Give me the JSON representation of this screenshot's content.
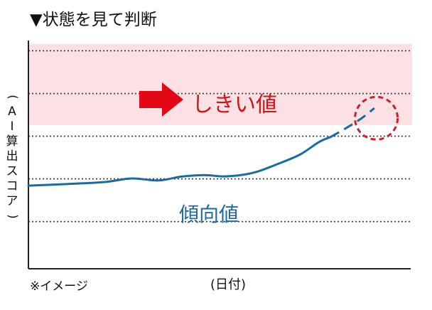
{
  "title": "▼状態を見て判断",
  "note": "※イメージ",
  "chart_data": {
    "type": "line",
    "xlabel": "(日付)",
    "ylabel": "(AI算出スコア)",
    "xlim": [
      0,
      100
    ],
    "ylim": [
      0,
      100
    ],
    "grid": true,
    "gridlines_y": [
      21,
      40,
      59,
      78,
      97
    ],
    "threshold_band": {
      "from": 64,
      "to": 100,
      "color": "#fbe1e3"
    },
    "annotations": {
      "threshold": "しきい値",
      "trend": "傾向値"
    },
    "colors": {
      "series": "#1b6aa0",
      "threshold_text": "#d3121a",
      "highlight_circle": "#c8222e",
      "arrow": "#e30613"
    },
    "series": [
      {
        "x": [
          0,
          10,
          20,
          27,
          34,
          40,
          46,
          51,
          56,
          60,
          65,
          71,
          76,
          79
        ],
        "y": [
          37,
          37.7,
          38.6,
          40.2,
          39.3,
          41,
          41.7,
          41.1,
          41.8,
          43.3,
          46.5,
          50.8,
          56.4,
          58.6
        ]
      },
      {
        "style": "dashed",
        "x": [
          79,
          83,
          87,
          90.5
        ],
        "y": [
          58.6,
          62.5,
          66.8,
          71.5
        ]
      }
    ],
    "highlight": {
      "x": 91,
      "y": 67
    }
  }
}
